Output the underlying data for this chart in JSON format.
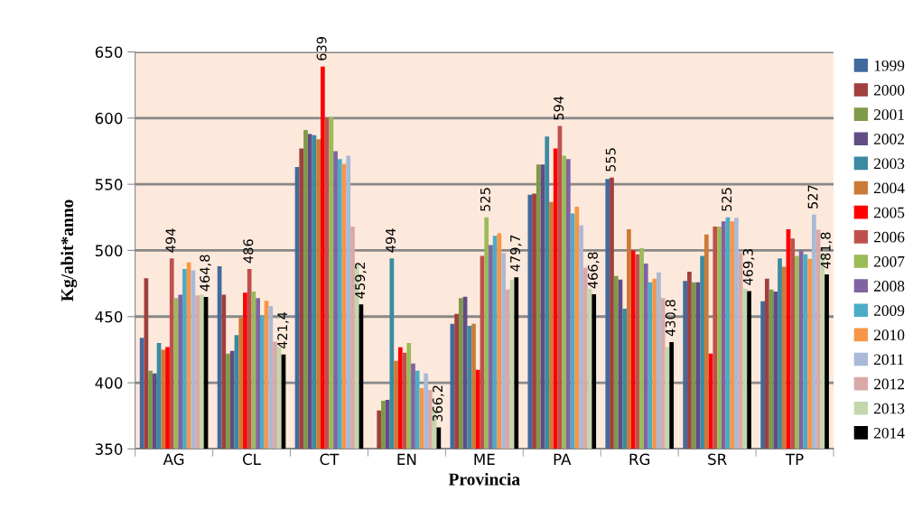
{
  "chart_data": {
    "type": "bar",
    "xlabel": "Provincia",
    "ylabel": "Kg/abit*anno",
    "categories": [
      "AG",
      "CL",
      "CT",
      "EN",
      "ME",
      "PA",
      "RG",
      "SR",
      "TP"
    ],
    "ylim": [
      350,
      650
    ],
    "yticks": [
      350,
      400,
      450,
      500,
      550,
      600,
      650
    ],
    "grid": "y",
    "legend": "right",
    "series": [
      {
        "name": "1999",
        "color": "#416a9e",
        "values": [
          434,
          488,
          563,
          350,
          444.5,
          542,
          554,
          477,
          461.6
        ]
      },
      {
        "name": "2000",
        "color": "#a0403e",
        "values": [
          479,
          466.6,
          577,
          379,
          452,
          543,
          555,
          484,
          478.7
        ],
        "value_labels": [
          null,
          null,
          null,
          null,
          null,
          null,
          "555",
          null,
          null
        ]
      },
      {
        "name": "2001",
        "color": "#7f9a48",
        "values": [
          409,
          422,
          591,
          386.4,
          464,
          565,
          480.7,
          476,
          470.5
        ]
      },
      {
        "name": "2002",
        "color": "#614c84",
        "values": [
          407,
          424,
          588,
          387,
          465,
          565,
          478,
          476,
          469
        ]
      },
      {
        "name": "2003",
        "color": "#3b8aa2",
        "values": [
          430,
          436,
          587,
          494,
          443,
          586,
          456,
          495.8,
          494
        ],
        "value_labels": [
          null,
          null,
          null,
          "494",
          null,
          null,
          null,
          null,
          null
        ]
      },
      {
        "name": "2004",
        "color": "#cc7a38",
        "values": [
          425,
          449,
          584,
          416.5,
          444.5,
          536.6,
          516,
          512,
          487.6
        ]
      },
      {
        "name": "2005",
        "color": "#ff0000",
        "values": [
          427,
          468,
          639,
          426.8,
          409.7,
          577,
          500,
          422,
          516
        ],
        "value_labels": [
          null,
          null,
          "639",
          null,
          null,
          null,
          null,
          null,
          null
        ]
      },
      {
        "name": "2006",
        "color": "#c0504d",
        "values": [
          494,
          486,
          600,
          422.7,
          495.8,
          594,
          497,
          518,
          509
        ],
        "value_labels": [
          "494",
          "486",
          null,
          null,
          null,
          "594",
          null,
          null,
          null
        ]
      },
      {
        "name": "2007",
        "color": "#9bbb59",
        "values": [
          464,
          469,
          600.6,
          430,
          525,
          571.6,
          501.7,
          518,
          495.8
        ],
        "value_labels": [
          null,
          null,
          null,
          null,
          "525",
          null,
          null,
          null,
          null
        ]
      },
      {
        "name": "2008",
        "color": "#8064a2",
        "values": [
          466.6,
          464,
          575,
          414.5,
          504,
          569,
          490,
          522,
          500
        ]
      },
      {
        "name": "2009",
        "color": "#4bacc6",
        "values": [
          486,
          450.7,
          569,
          409,
          511,
          528,
          476,
          525,
          497
        ],
        "value_labels": [
          null,
          null,
          null,
          null,
          null,
          null,
          null,
          "525",
          null
        ]
      },
      {
        "name": "2010",
        "color": "#f79646",
        "values": [
          491,
          462,
          565.5,
          396,
          513,
          533,
          478.7,
          522,
          493.7
        ]
      },
      {
        "name": "2011",
        "color": "#a9b9d8",
        "values": [
          485,
          458,
          571.6,
          407,
          498,
          519,
          483.5,
          524.6,
          527
        ],
        "value_labels": [
          null,
          null,
          null,
          null,
          null,
          null,
          null,
          null,
          "527"
        ]
      },
      {
        "name": "2012",
        "color": "#d9a9a8",
        "values": [
          466,
          431,
          518,
          394.6,
          470.5,
          487,
          464,
          498.5,
          515.6
        ]
      },
      {
        "name": "2013",
        "color": "#c4d6ac",
        "values": [
          466.6,
          427,
          490,
          380,
          478,
          471,
          427,
          471,
          498
        ]
      },
      {
        "name": "2014",
        "color": "#000000",
        "values": [
          464.8,
          421.4,
          459.2,
          366.2,
          479.7,
          466.8,
          430.8,
          469.3,
          481.8
        ],
        "value_labels": [
          "464,8",
          "421,4",
          "459,2",
          "366,2",
          "479,7",
          "466,8",
          "430,8",
          "469,3",
          "481,8"
        ]
      }
    ]
  }
}
